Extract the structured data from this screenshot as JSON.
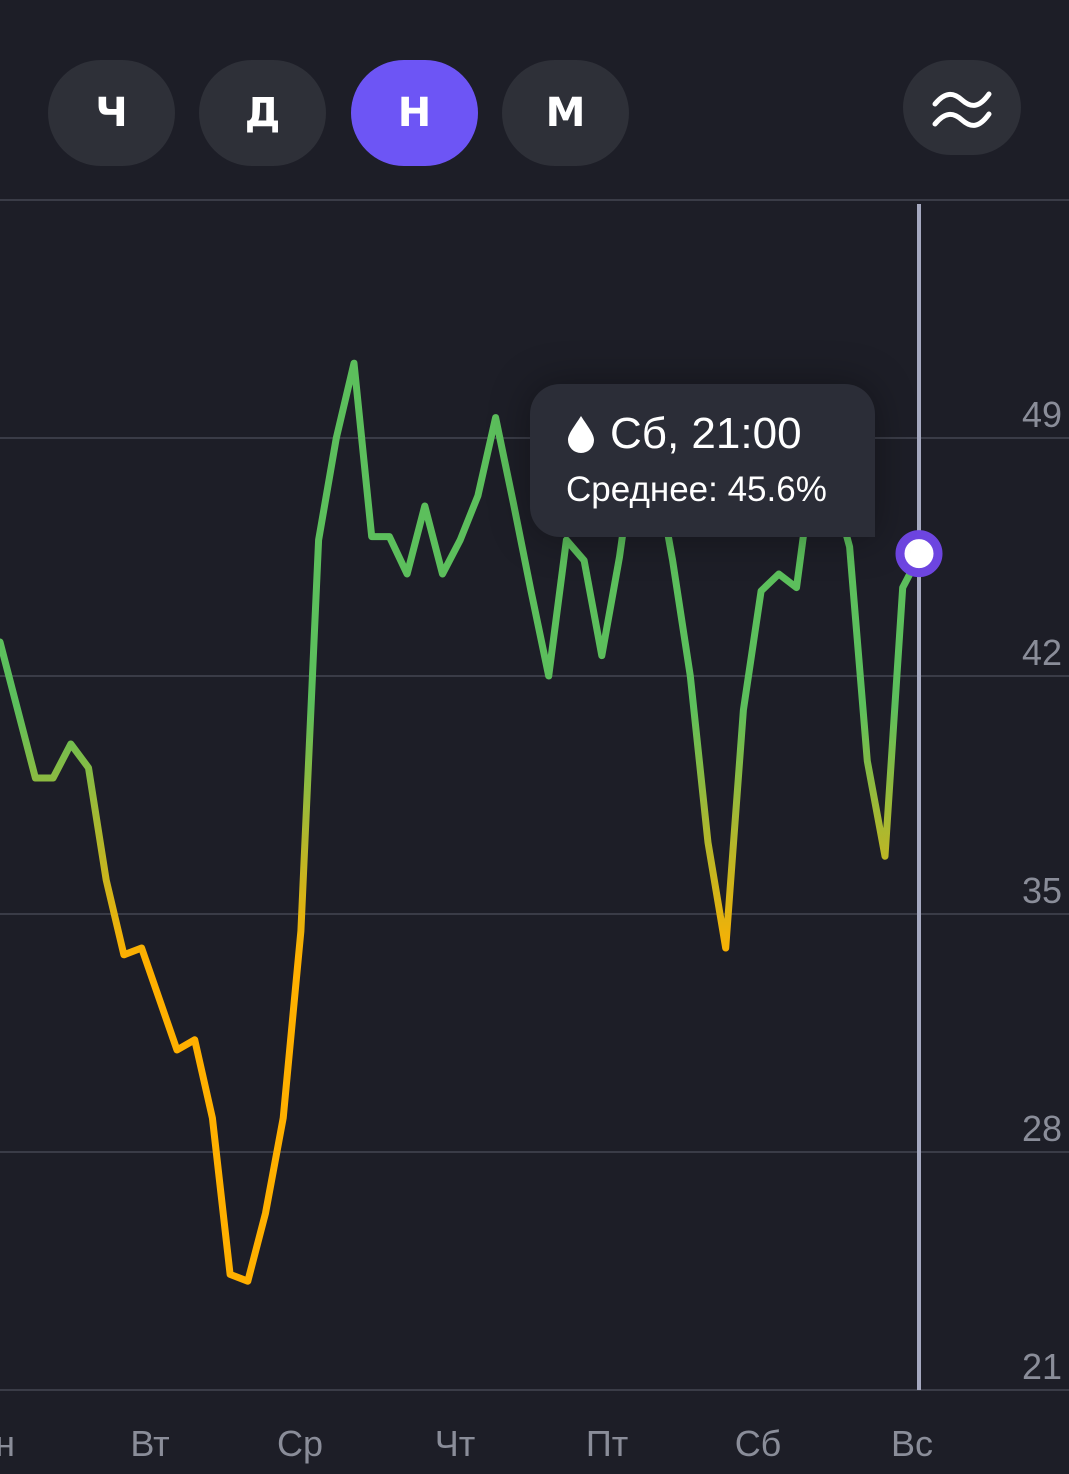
{
  "period_tabs": [
    {
      "label": "Ч",
      "active": false
    },
    {
      "label": "Д",
      "active": false
    },
    {
      "label": "Н",
      "active": true
    },
    {
      "label": "М",
      "active": false
    }
  ],
  "filter_button": {
    "icon": "waves-icon"
  },
  "colors": {
    "background": "#1d1e27",
    "active_tab": "#6d55f5",
    "line_high": "#5cbf5c",
    "line_low": "#ffb000",
    "cursor": "#a5a9c0",
    "marker": "#6d45e0"
  },
  "tooltip": {
    "icon": "drop-icon",
    "title": "Сб, 21:00",
    "subtitle": "Среднее: 45.6%"
  },
  "chart_data": {
    "type": "line",
    "x_categories": [
      "н",
      "Вт",
      "Ср",
      "Чт",
      "Пт",
      "Сб",
      "Вс"
    ],
    "y_ticks": [
      21,
      28,
      35,
      42,
      49
    ],
    "ylim": [
      21,
      56
    ],
    "grid": true,
    "series": [
      {
        "values": [
          [
            0,
            43.0
          ],
          [
            1,
            41.0
          ],
          [
            2,
            39.0
          ],
          [
            3,
            39.0
          ],
          [
            4,
            40.0
          ],
          [
            5,
            39.3
          ],
          [
            6,
            36.0
          ],
          [
            7,
            33.8
          ],
          [
            8,
            34.0
          ],
          [
            9,
            32.5
          ],
          [
            10,
            31.0
          ],
          [
            11,
            31.3
          ],
          [
            12,
            29.0
          ],
          [
            13,
            24.4
          ],
          [
            14,
            24.2
          ],
          [
            15,
            26.2
          ],
          [
            16,
            29.0
          ],
          [
            17,
            34.5
          ],
          [
            18,
            46.0
          ],
          [
            19,
            49.0
          ],
          [
            20,
            51.2
          ],
          [
            21,
            46.1
          ],
          [
            22,
            46.1
          ],
          [
            23,
            45.0
          ],
          [
            24,
            47.0
          ],
          [
            25,
            45.0
          ],
          [
            26,
            46.0
          ],
          [
            27,
            47.3
          ],
          [
            28,
            49.6
          ],
          [
            29,
            47.1
          ],
          [
            30,
            44.5
          ],
          [
            31,
            42.0
          ],
          [
            32,
            46.0
          ],
          [
            33,
            45.4
          ],
          [
            34,
            42.6
          ],
          [
            35,
            45.5
          ],
          [
            36,
            49.2
          ],
          [
            37,
            48.3
          ],
          [
            38,
            45.4
          ],
          [
            39,
            42.0
          ],
          [
            40,
            37.1
          ],
          [
            41,
            34.0
          ],
          [
            42,
            41.0
          ],
          [
            43,
            44.5
          ],
          [
            44,
            45.0
          ],
          [
            45,
            44.6
          ],
          [
            46,
            48.5
          ],
          [
            47,
            47.7
          ],
          [
            48,
            45.8
          ],
          [
            49,
            39.5
          ],
          [
            50,
            36.7
          ],
          [
            51,
            44.6
          ],
          [
            52,
            45.6
          ]
        ]
      }
    ],
    "selected_point": {
      "label": "Сб, 21:00",
      "value": 45.6
    }
  }
}
